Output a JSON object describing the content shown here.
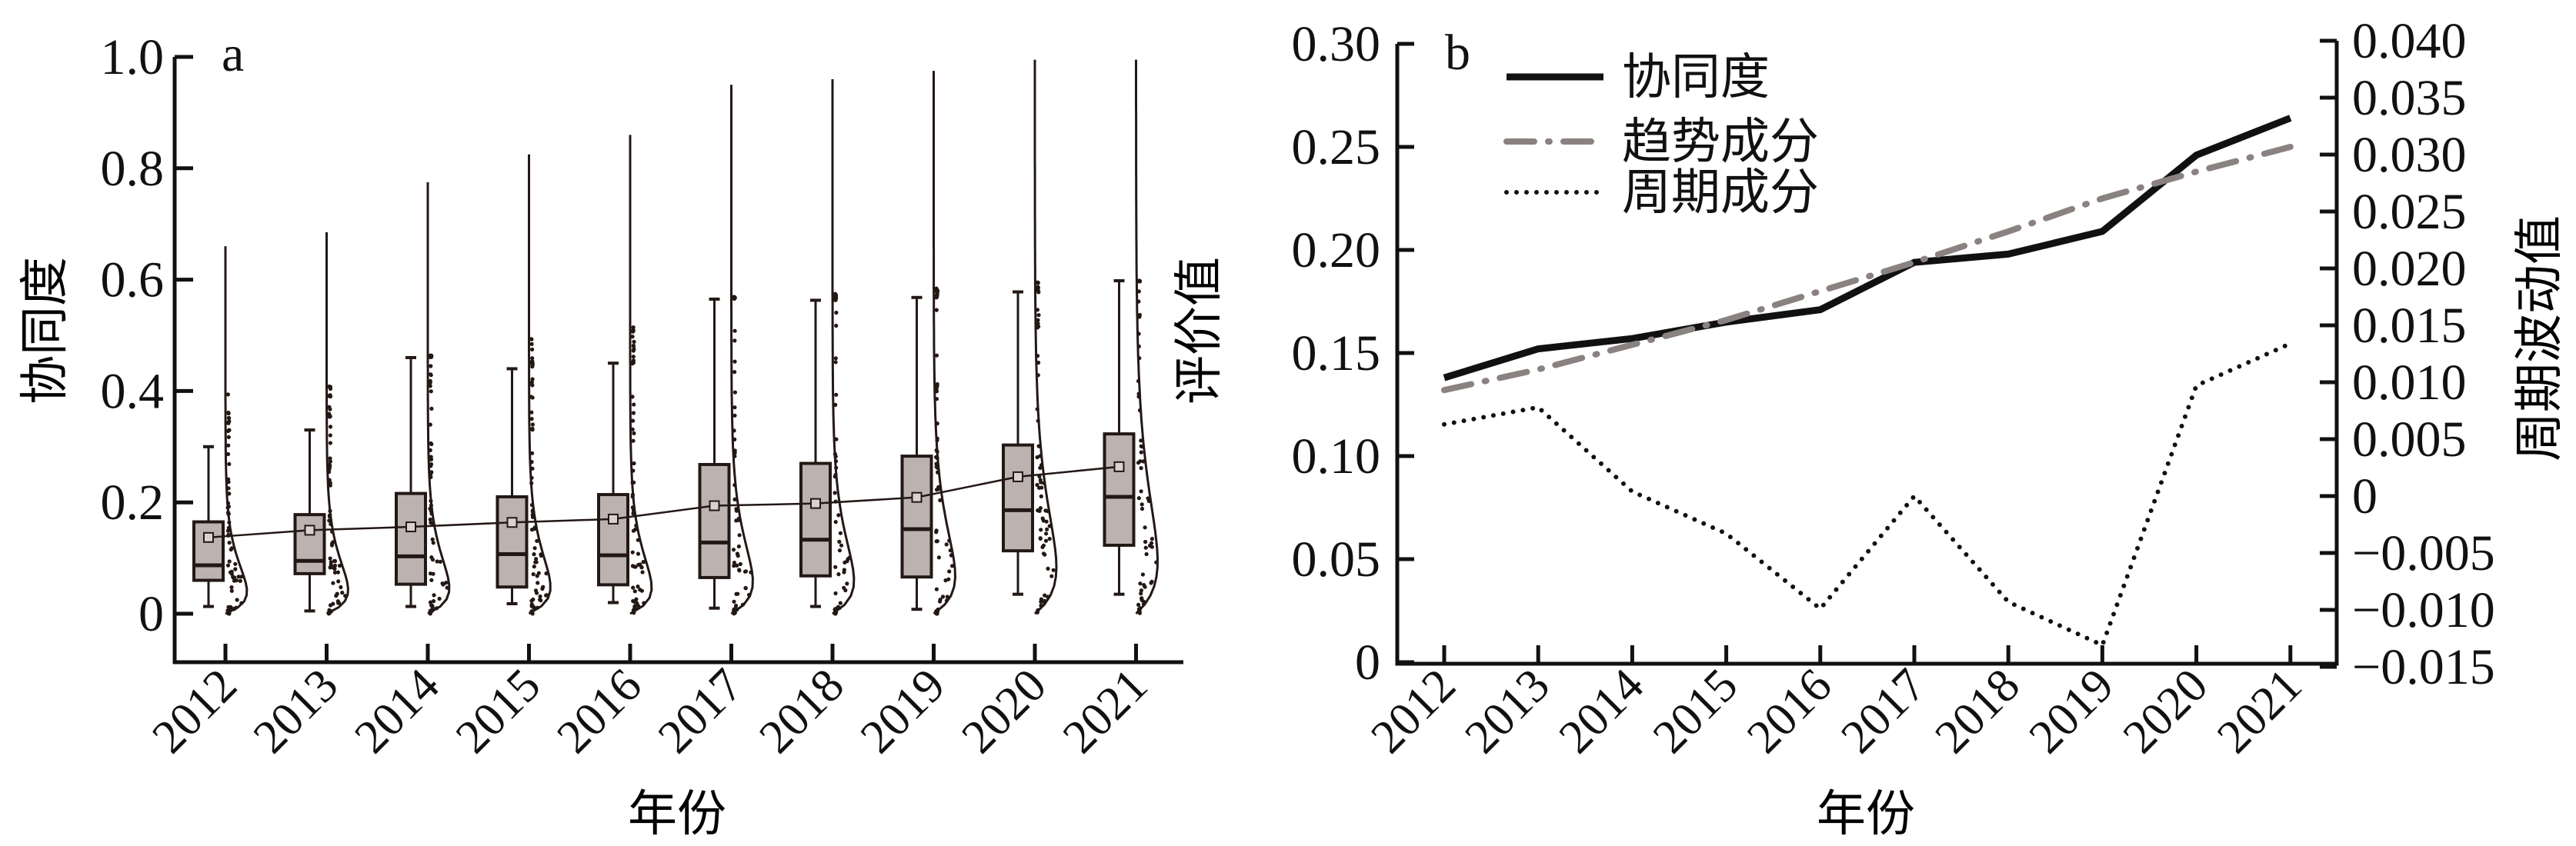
{
  "chart_data": [
    {
      "type": "box",
      "panel_label": "a",
      "xlabel": "年份",
      "ylabel": "协同度",
      "ylim": [
        -0.09,
        1.0
      ],
      "yticks": [
        "0",
        "0.2",
        "0.4",
        "0.6",
        "0.8",
        "1.0"
      ],
      "ytick_values": [
        0,
        0.2,
        0.4,
        0.6,
        0.8,
        1.0
      ],
      "categories": [
        "2012",
        "2013",
        "2014",
        "2015",
        "2016",
        "2017",
        "2018",
        "2019",
        "2020",
        "2021"
      ],
      "whisker_low": [
        0.013,
        0.005,
        0.013,
        0.018,
        0.02,
        0.01,
        0.013,
        0.008,
        0.035,
        0.035
      ],
      "q1": [
        0.06,
        0.072,
        0.053,
        0.048,
        0.052,
        0.065,
        0.068,
        0.066,
        0.113,
        0.123
      ],
      "median": [
        0.087,
        0.095,
        0.103,
        0.107,
        0.105,
        0.128,
        0.133,
        0.152,
        0.186,
        0.21
      ],
      "q3": [
        0.165,
        0.178,
        0.216,
        0.21,
        0.214,
        0.268,
        0.27,
        0.283,
        0.303,
        0.323
      ],
      "whisker_high": [
        0.3,
        0.33,
        0.46,
        0.44,
        0.45,
        0.565,
        0.563,
        0.568,
        0.578,
        0.598
      ],
      "mean": [
        0.137,
        0.15,
        0.156,
        0.164,
        0.17,
        0.194,
        0.198,
        0.209,
        0.246,
        0.264
      ],
      "max": [
        0.66,
        0.685,
        0.775,
        0.825,
        0.86,
        0.95,
        0.96,
        0.975,
        0.995,
        0.995
      ],
      "colors": {
        "box": "#bcb3b1",
        "line": "#231815"
      }
    },
    {
      "type": "line",
      "panel_label": "b",
      "xlabel": "年份",
      "ylabel": "评价值",
      "y2label": "周期波动值",
      "ylim": [
        0,
        0.3
      ],
      "y2lim": [
        -0.015,
        0.04
      ],
      "yticks": [
        "0",
        "0.05",
        "0.10",
        "0.15",
        "0.20",
        "0.25",
        "0.30"
      ],
      "ytick_values": [
        0,
        0.05,
        0.1,
        0.15,
        0.2,
        0.25,
        0.3
      ],
      "y2ticks": [
        "−0.015",
        "−0.010",
        "−0.005",
        "0",
        "0.005",
        "0.010",
        "0.015",
        "0.020",
        "0.025",
        "0.030",
        "0.035",
        "0.040"
      ],
      "y2tick_values": [
        -0.015,
        -0.01,
        -0.005,
        0,
        0.005,
        0.01,
        0.015,
        0.02,
        0.025,
        0.03,
        0.035,
        0.04
      ],
      "categories": [
        "2012",
        "2013",
        "2014",
        "2015",
        "2016",
        "2017",
        "2018",
        "2019",
        "2020",
        "2021"
      ],
      "legend_position": "top-left",
      "series": [
        {
          "name": "协同度",
          "axis": "left",
          "style": "solid",
          "color": "#111111",
          "values": [
            0.138,
            0.152,
            0.157,
            0.165,
            0.171,
            0.194,
            0.198,
            0.209,
            0.246,
            0.264
          ]
        },
        {
          "name": "趋势成分",
          "axis": "left",
          "style": "dashdot",
          "color": "#8a8280",
          "values": [
            0.132,
            0.142,
            0.154,
            0.166,
            0.18,
            0.194,
            0.209,
            0.225,
            0.238,
            0.25
          ]
        },
        {
          "name": "周期成分",
          "axis": "right",
          "style": "dotted",
          "color": "#111111",
          "values": [
            0.0063,
            0.0078,
            0.0004,
            -0.0033,
            -0.0099,
            0.0,
            -0.0093,
            -0.0131,
            0.0097,
            0.0134
          ]
        }
      ]
    }
  ]
}
